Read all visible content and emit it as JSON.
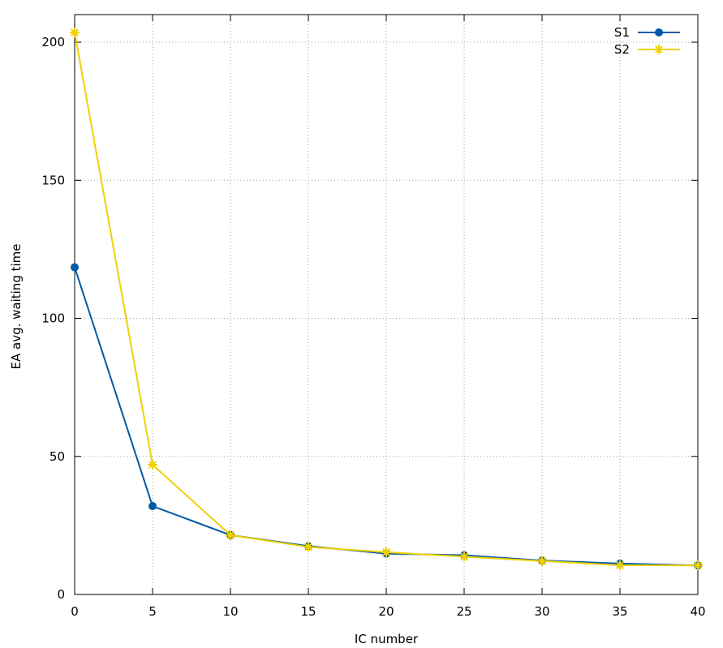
{
  "chart_data": {
    "type": "line",
    "title": "",
    "xlabel": "IC number",
    "ylabel": "EA avg. waiting time",
    "xlim": [
      0,
      40
    ],
    "ylim": [
      0,
      210
    ],
    "xticks": [
      0,
      5,
      10,
      15,
      20,
      25,
      30,
      35,
      40
    ],
    "yticks": [
      0,
      50,
      100,
      150,
      200
    ],
    "grid": true,
    "legend_position": "top-right",
    "x": [
      0,
      5,
      10,
      15,
      20,
      25,
      30,
      35,
      40
    ],
    "series": [
      {
        "name": "S1",
        "color": "#005aa5",
        "marker": "circle",
        "values": [
          118.5,
          32,
          21.5,
          17.5,
          14.8,
          14.2,
          12.3,
          11.2,
          10.5
        ]
      },
      {
        "name": "S2",
        "color": "#f0d000",
        "marker": "asterisk",
        "values": [
          203.5,
          47,
          21.5,
          17.2,
          15.3,
          13.7,
          12.1,
          10.6,
          10.5
        ]
      }
    ]
  }
}
